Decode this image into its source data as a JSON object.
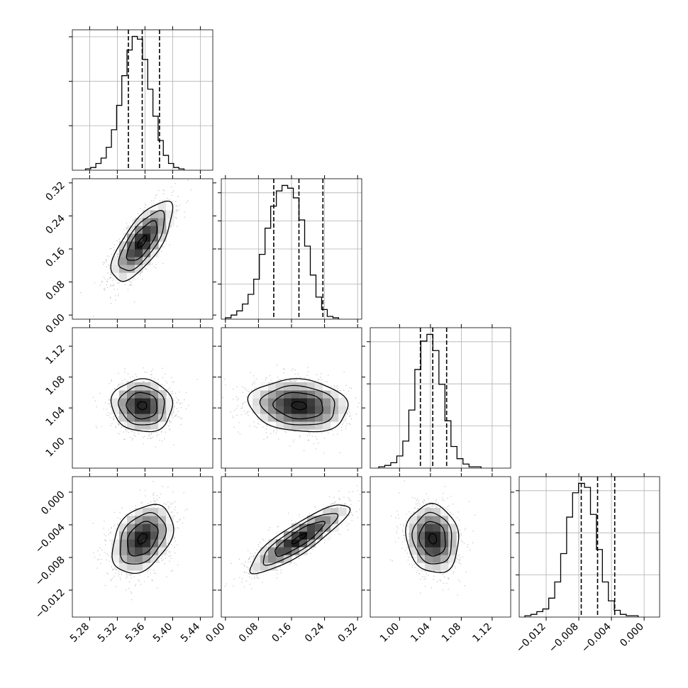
{
  "chart_data": {
    "type": "corner",
    "grid": true,
    "parameters": [
      {
        "ticks": [
          5.28,
          5.32,
          5.36,
          5.4,
          5.44
        ],
        "tick_labels": [
          "5.28",
          "5.32",
          "5.36",
          "5.40",
          "5.44"
        ],
        "range": [
          5.255,
          5.458
        ],
        "median": 5.356,
        "lower": 5.336,
        "upper": 5.381,
        "hist": {
          "edges_start": 5.274,
          "bin_width": 0.0075,
          "counts": [
            1,
            2,
            5,
            9,
            17,
            30,
            48,
            70,
            89,
            99,
            97,
            82,
            60,
            40,
            22,
            11,
            5,
            2,
            1
          ]
        },
        "hist_ticks": [
          0.317,
          0.633,
          0.95
        ]
      },
      {
        "ticks": [
          0.0,
          0.08,
          0.16,
          0.24,
          0.32
        ],
        "tick_labels": [
          "0.00",
          "0.08",
          "0.16",
          "0.24",
          "0.32"
        ],
        "range": [
          -0.01,
          0.33
        ],
        "median": 0.178,
        "lower": 0.117,
        "upper": 0.236,
        "hist": {
          "edges_start": 0.0,
          "bin_width": 0.0137,
          "counts": [
            1,
            3,
            6,
            11,
            18,
            29,
            47,
            66,
            82,
            93,
            97,
            95,
            88,
            72,
            53,
            32,
            16,
            7,
            2,
            1
          ]
        },
        "hist_ticks": [
          0.25,
          0.5,
          0.7,
          0.9
        ]
      },
      {
        "ticks": [
          1.0,
          1.04,
          1.08,
          1.12
        ],
        "tick_labels": [
          "1.00",
          "1.04",
          "1.08",
          "1.12"
        ],
        "range": [
          0.962,
          1.144
        ],
        "median": 1.043,
        "lower": 1.027,
        "upper": 1.061,
        "hist": {
          "edges_start": 0.973,
          "bin_width": 0.0078,
          "counts": [
            1,
            2,
            4,
            9,
            20,
            43,
            73,
            94,
            99,
            87,
            62,
            35,
            16,
            7,
            3,
            1,
            1
          ]
        },
        "hist_ticks": [
          0.3,
          0.6,
          0.9
        ]
      },
      {
        "ticks": [
          -0.012,
          -0.008,
          -0.004,
          0.0
        ],
        "tick_labels": [
          "−0.012",
          "−0.008",
          "−0.004",
          "0.000"
        ],
        "range": [
          -0.0153,
          0.0019
        ],
        "median": -0.0057,
        "lower": -0.0077,
        "upper": -0.0036,
        "hist": {
          "edges_start": -0.0146,
          "bin_width": 0.00073,
          "counts": [
            1,
            2,
            4,
            6,
            14,
            26,
            47,
            74,
            92,
            99,
            96,
            76,
            50,
            26,
            12,
            5,
            2,
            1,
            1
          ]
        },
        "hist_ticks": [
          0.3,
          0.6,
          0.9
        ]
      }
    ],
    "correlations": [
      {
        "i": 1,
        "j": 0,
        "rho": 0.72,
        "sx": 0.022,
        "sy": 0.048
      },
      {
        "i": 2,
        "j": 0,
        "rho": -0.05,
        "sx": 0.022,
        "sy": 0.017
      },
      {
        "i": 2,
        "j": 1,
        "rho": -0.12,
        "sx": 0.06,
        "sy": 0.017
      },
      {
        "i": 3,
        "j": 0,
        "rho": 0.35,
        "sx": 0.022,
        "sy": 0.0021
      },
      {
        "i": 3,
        "j": 1,
        "rho": 0.87,
        "sx": 0.06,
        "sy": 0.0021
      },
      {
        "i": 3,
        "j": 2,
        "rho": -0.1,
        "sx": 0.017,
        "sy": 0.0021
      }
    ],
    "contour_levels_sigma": [
      0.5,
      1.0,
      1.5,
      2.0
    ],
    "colors": {
      "hist": "#000000",
      "quantile": "#000000",
      "grid": "#b0b0b0",
      "scatter": "#a0a0a0",
      "contour": "#000000"
    }
  }
}
